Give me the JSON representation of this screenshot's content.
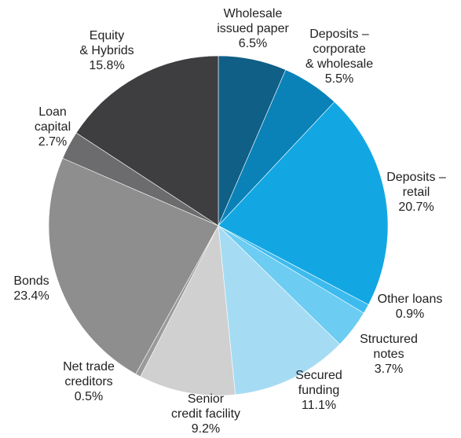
{
  "chart_data": {
    "type": "pie",
    "title": "",
    "start_angle_deg": 0,
    "direction": "clockwise",
    "slices": [
      {
        "label_lines": [
          "Wholesale",
          "issued paper"
        ],
        "value_label": "6.5%",
        "value": 6.5,
        "color": "#0f5f86"
      },
      {
        "label_lines": [
          "Deposits –",
          "corporate",
          "& wholesale"
        ],
        "value_label": "5.5%",
        "value": 5.5,
        "color": "#0a82b8"
      },
      {
        "label_lines": [
          "Deposits –",
          "retail"
        ],
        "value_label": "20.7%",
        "value": 20.7,
        "color": "#12a7e3"
      },
      {
        "label_lines": [
          "Other loans"
        ],
        "value_label": "0.9%",
        "value": 0.9,
        "color": "#3dbbee"
      },
      {
        "label_lines": [
          "Structured",
          "notes"
        ],
        "value_label": "3.7%",
        "value": 3.7,
        "color": "#6cccf2"
      },
      {
        "label_lines": [
          "Secured",
          "funding"
        ],
        "value_label": "11.1%",
        "value": 11.1,
        "color": "#a5dcf4"
      },
      {
        "label_lines": [
          "Senior",
          "credit facility"
        ],
        "value_label": "9.2%",
        "value": 9.2,
        "color": "#d0d0d0"
      },
      {
        "label_lines": [
          "Net trade",
          "creditors"
        ],
        "value_label": "0.5%",
        "value": 0.5,
        "color": "#9a9a9a"
      },
      {
        "label_lines": [
          "Bonds"
        ],
        "value_label": "23.4%",
        "value": 23.4,
        "color": "#8e8e8e"
      },
      {
        "label_lines": [
          "Loan",
          "capital"
        ],
        "value_label": "2.7%",
        "value": 2.7,
        "color": "#6c6c6e"
      },
      {
        "label_lines": [
          "Equity",
          "& Hybrids"
        ],
        "value_label": "15.8%",
        "value": 15.8,
        "color": "#3e3e41"
      }
    ]
  }
}
